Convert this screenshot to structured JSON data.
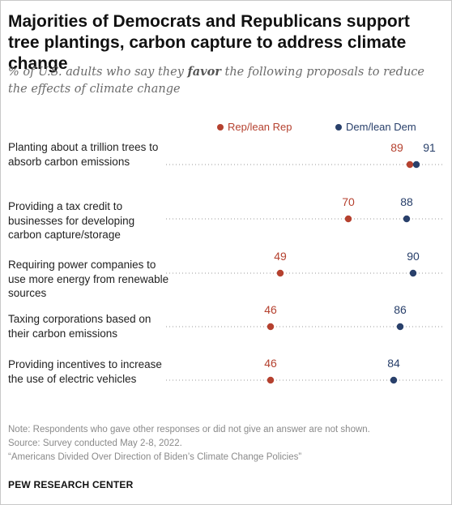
{
  "header": {
    "title": "Majorities of Democrats and Republicans support tree plantings, carbon capture to address climate change",
    "subtitle_before": "% of U.S. adults who say they ",
    "subtitle_emphasis": "favor",
    "subtitle_after": " the following proposals to reduce the effects of climate change"
  },
  "colors": {
    "rep": "#b5412f",
    "dem": "#29406b",
    "dotted_line": "#9a9a9a"
  },
  "chart_data": {
    "type": "scatter",
    "title": "Majorities of Democrats and Republicans support tree plantings, carbon capture to address climate change",
    "xlabel": "",
    "ylabel": "",
    "xlim": [
      0,
      100
    ],
    "grid": false,
    "legend_position": "top",
    "categories": [
      "Planting about a trillion trees to absorb carbon emissions",
      "Providing a tax credit to businesses for developing carbon capture/storage",
      "Requiring power companies to use more energy from renewable sources",
      "Taxing corporations based on their carbon emissions",
      "Providing incentives to increase the use of electric vehicles"
    ],
    "series": [
      {
        "name": "Rep/lean Rep",
        "values": [
          89,
          70,
          49,
          46,
          46
        ]
      },
      {
        "name": "Dem/lean Dem",
        "values": [
          91,
          88,
          90,
          86,
          84
        ]
      }
    ]
  },
  "footer": {
    "note": "Note: Respondents who gave other responses or did not give an answer are not shown.",
    "source": "Source: Survey conducted May 2-8, 2022.",
    "report": "“Americans Divided Over Direction of Biden’s Climate Change Policies”",
    "brand": "PEW RESEARCH CENTER"
  }
}
